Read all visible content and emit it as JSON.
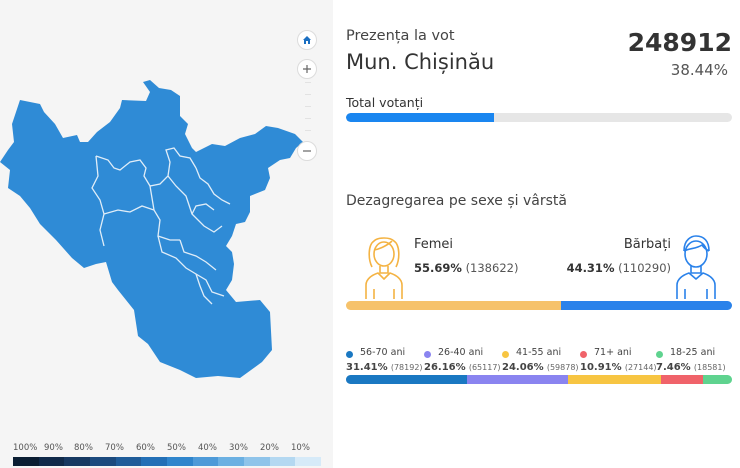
{
  "map": {
    "controls": [
      "home-icon",
      "zoom-in-icon",
      "zoom-out-icon"
    ],
    "region_fill": "#2f8bd6",
    "legend_labels": [
      "100%",
      "90%",
      "80%",
      "70%",
      "60%",
      "50%",
      "40%",
      "30%",
      "20%",
      "10%"
    ],
    "legend_colors": [
      "#0b1e33",
      "#102a4a",
      "#163861",
      "#1b4a7e",
      "#1f5c99",
      "#226fb6",
      "#2f85cc",
      "#4d9ad8",
      "#6bb0e2",
      "#8fc4ea",
      "#b4d8f1",
      "#d6eaf8"
    ]
  },
  "header": {
    "turnout_label": "Prezența la vot",
    "region_name": "Mun. Chișinău",
    "total_count": "248912",
    "total_percent": "38.44%"
  },
  "total_voters": {
    "label": "Total votanți",
    "fraction": 0.3844,
    "color": "#1a86f0"
  },
  "gender": {
    "title": "Dezagregarea pe sexe și vârstă",
    "female": {
      "label": "Femei",
      "percent": "55.69%",
      "count": "(138622)",
      "share": 0.5569,
      "color": "#f6c26b"
    },
    "male": {
      "label": "Bărbați",
      "percent": "44.31%",
      "count": "(110290)",
      "share": 0.4431,
      "color": "#2a82ea"
    }
  },
  "age_groups": [
    {
      "range": "56-70 ani",
      "percent": "31.41%",
      "count": "(78192)",
      "share": 0.3141,
      "color": "#1a78c2"
    },
    {
      "range": "26-40 ani",
      "percent": "26.16%",
      "count": "(65117)",
      "share": 0.2616,
      "color": "#8a84f0"
    },
    {
      "range": "41-55 ani",
      "percent": "24.06%",
      "count": "(59878)",
      "share": 0.2406,
      "color": "#f7c542"
    },
    {
      "range": "71+ ani",
      "percent": "10.91%",
      "count": "(27144)",
      "share": 0.1091,
      "color": "#f0636a"
    },
    {
      "range": "18-25 ani",
      "percent": "7.46%",
      "count": "(18581)",
      "share": 0.0746,
      "color": "#5fd38f"
    }
  ]
}
